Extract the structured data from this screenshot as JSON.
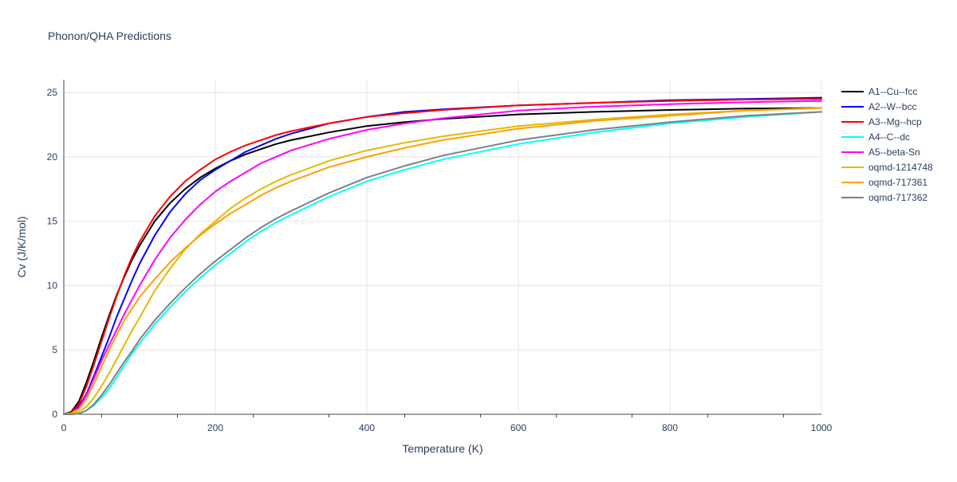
{
  "chart_data": {
    "type": "line",
    "title": "Phonon/QHA Predictions",
    "xlabel": "Temperature (K)",
    "ylabel": "Cv (J/K/mol)",
    "xlim": [
      0,
      1000
    ],
    "ylim": [
      0,
      26
    ],
    "xticks": [
      0,
      200,
      400,
      600,
      800,
      1000
    ],
    "yticks": [
      0,
      5,
      10,
      15,
      20,
      25
    ],
    "grid": true,
    "legend_position": "right",
    "x": [
      0,
      10,
      20,
      30,
      40,
      50,
      60,
      70,
      80,
      90,
      100,
      120,
      140,
      160,
      180,
      200,
      220,
      240,
      260,
      280,
      300,
      350,
      400,
      450,
      500,
      600,
      700,
      800,
      900,
      1000
    ],
    "series": [
      {
        "name": "A1--Cu--fcc",
        "color": "#000000",
        "values": [
          0,
          0.2,
          1.0,
          2.5,
          4.2,
          6.0,
          7.7,
          9.3,
          10.7,
          12.0,
          13.1,
          15.0,
          16.4,
          17.5,
          18.4,
          19.1,
          19.7,
          20.2,
          20.6,
          21.0,
          21.3,
          21.9,
          22.4,
          22.7,
          22.95,
          23.3,
          23.5,
          23.65,
          23.75,
          23.8
        ]
      },
      {
        "name": "A2--W--bcc",
        "color": "#0000ff",
        "values": [
          0,
          0.1,
          0.6,
          1.6,
          3.0,
          4.5,
          6.0,
          7.6,
          9.0,
          10.4,
          11.7,
          13.9,
          15.7,
          17.1,
          18.2,
          19.0,
          19.7,
          20.4,
          20.9,
          21.4,
          21.8,
          22.6,
          23.1,
          23.5,
          23.7,
          24.0,
          24.2,
          24.4,
          24.5,
          24.6
        ]
      },
      {
        "name": "A3--Mg--hcp",
        "color": "#ff0000",
        "values": [
          0,
          0.1,
          0.8,
          2.2,
          3.9,
          5.7,
          7.5,
          9.2,
          10.8,
          12.2,
          13.4,
          15.4,
          16.9,
          18.1,
          19.0,
          19.8,
          20.4,
          20.9,
          21.3,
          21.7,
          22.0,
          22.6,
          23.1,
          23.4,
          23.65,
          24.0,
          24.2,
          24.35,
          24.45,
          24.5
        ]
      },
      {
        "name": "A4--C--dc",
        "color": "#00ffff",
        "values": [
          0,
          0.0,
          0.05,
          0.3,
          0.7,
          1.3,
          2.0,
          2.9,
          3.8,
          4.7,
          5.5,
          7.0,
          8.3,
          9.5,
          10.6,
          11.6,
          12.5,
          13.4,
          14.2,
          14.9,
          15.5,
          16.9,
          18.1,
          19.0,
          19.8,
          21.0,
          21.9,
          22.6,
          23.1,
          23.5
        ]
      },
      {
        "name": "A5--beta-Sn",
        "color": "#ff00ff",
        "values": [
          0,
          0.1,
          0.5,
          1.5,
          2.8,
          4.2,
          5.4,
          6.6,
          7.8,
          8.9,
          10.0,
          12.0,
          13.7,
          15.1,
          16.3,
          17.3,
          18.1,
          18.8,
          19.5,
          20.0,
          20.5,
          21.4,
          22.1,
          22.6,
          23.0,
          23.6,
          23.9,
          24.1,
          24.25,
          24.35
        ]
      },
      {
        "name": "oqmd-1214748",
        "color": "#e6b800",
        "values": [
          0,
          0.0,
          0.2,
          0.6,
          1.3,
          2.2,
          3.2,
          4.3,
          5.4,
          6.5,
          7.5,
          9.6,
          11.3,
          12.8,
          14.0,
          15.0,
          16.0,
          16.8,
          17.5,
          18.1,
          18.6,
          19.7,
          20.5,
          21.1,
          21.6,
          22.4,
          22.9,
          23.3,
          23.6,
          23.8
        ]
      },
      {
        "name": "oqmd-717361",
        "color": "#ff9f00",
        "values": [
          0,
          0.1,
          0.4,
          1.2,
          2.4,
          3.7,
          5.0,
          6.2,
          7.3,
          8.2,
          9.1,
          10.5,
          11.8,
          12.9,
          13.9,
          14.8,
          15.6,
          16.3,
          17.0,
          17.6,
          18.1,
          19.2,
          20.0,
          20.7,
          21.3,
          22.2,
          22.8,
          23.2,
          23.6,
          23.8
        ]
      },
      {
        "name": "oqmd-717362",
        "color": "#808080",
        "values": [
          0,
          0.0,
          0.05,
          0.3,
          0.8,
          1.5,
          2.3,
          3.2,
          4.1,
          4.9,
          5.8,
          7.3,
          8.6,
          9.8,
          10.9,
          11.9,
          12.8,
          13.7,
          14.5,
          15.2,
          15.8,
          17.2,
          18.4,
          19.3,
          20.1,
          21.3,
          22.1,
          22.7,
          23.2,
          23.5
        ]
      }
    ]
  }
}
